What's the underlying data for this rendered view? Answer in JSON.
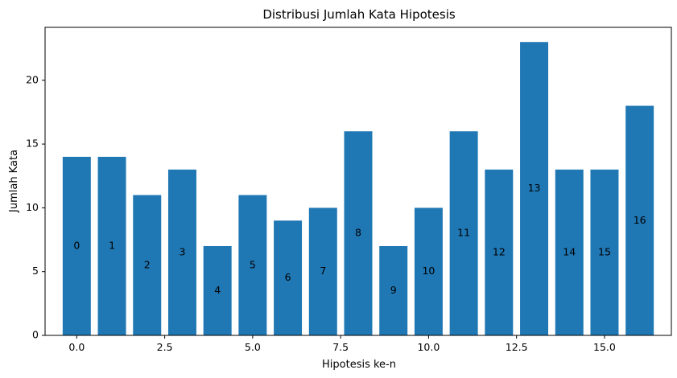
{
  "chart_data": {
    "type": "bar",
    "title": "Distribusi Jumlah Kata Hipotesis",
    "xlabel": "Hipotesis ke-n",
    "ylabel": "Jumlah Kata",
    "x": [
      0,
      1,
      2,
      3,
      4,
      5,
      6,
      7,
      8,
      9,
      10,
      11,
      12,
      13,
      14,
      15,
      16
    ],
    "values": [
      14,
      14,
      11,
      13,
      7,
      11,
      9,
      10,
      16,
      7,
      10,
      16,
      13,
      23,
      13,
      13,
      18
    ],
    "bar_labels": [
      "0",
      "1",
      "2",
      "3",
      "4",
      "5",
      "6",
      "7",
      "8",
      "9",
      "10",
      "11",
      "12",
      "13",
      "14",
      "15",
      "16"
    ],
    "xlim": [
      -0.9,
      16.9
    ],
    "ylim": [
      0,
      24.15
    ],
    "xticks": [
      0.0,
      2.5,
      5.0,
      7.5,
      10.0,
      12.5,
      15.0
    ],
    "xtick_labels": [
      "0.0",
      "2.5",
      "5.0",
      "7.5",
      "10.0",
      "12.5",
      "15.0"
    ],
    "yticks": [
      0,
      5,
      10,
      15,
      20
    ],
    "ytick_labels": [
      "0",
      "5",
      "10",
      "15",
      "20"
    ],
    "bar_color": "#1f77b4",
    "grid": false,
    "legend": "none"
  }
}
